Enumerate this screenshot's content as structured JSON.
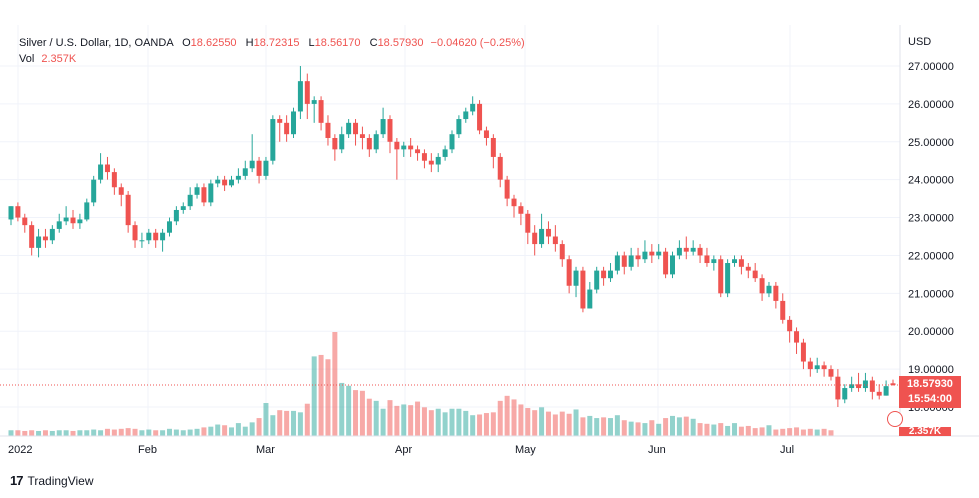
{
  "legend": {
    "symbol": "Silver / U.S. Dollar, 1D, OANDA",
    "open_label": "O",
    "open": "18.62550",
    "high_label": "H",
    "high": "18.72315",
    "low_label": "L",
    "low": "18.56170",
    "close_label": "C",
    "close": "18.57930",
    "change": "−0.04620 (−0.25%)",
    "vol_label": "Vol",
    "vol": "2.357K"
  },
  "currency": "USD",
  "last_price": "18.57930",
  "countdown": "15:54:00",
  "vol_tag": "2.357K",
  "brand": "TradingView",
  "colors": {
    "up": "#26a69a",
    "down": "#ef5350",
    "grid": "#f0f3fa",
    "axis_text": "#131722"
  },
  "chart_data": {
    "type": "candlestick",
    "y_ticks": [
      "27.00000",
      "26.00000",
      "25.00000",
      "24.00000",
      "23.00000",
      "22.00000",
      "21.00000",
      "20.00000",
      "19.00000",
      "18.00000"
    ],
    "ylim": [
      17.5,
      27.9
    ],
    "x_ticks": [
      "2022",
      "Feb",
      "Mar",
      "Apr",
      "May",
      "Jun",
      "Jul"
    ],
    "current_price": 18.5793,
    "candles": [
      [
        22.95,
        23.3,
        23.3,
        22.8
      ],
      [
        23.3,
        23.0,
        23.4,
        22.9
      ],
      [
        23.0,
        22.8,
        23.1,
        22.6
      ],
      [
        22.8,
        22.2,
        22.9,
        22.0
      ],
      [
        22.2,
        22.5,
        22.7,
        21.95
      ],
      [
        22.5,
        22.4,
        22.7,
        22.2
      ],
      [
        22.4,
        22.7,
        22.8,
        22.3
      ],
      [
        22.7,
        22.9,
        23.1,
        22.6
      ],
      [
        22.9,
        23.0,
        23.3,
        22.8
      ],
      [
        23.0,
        22.85,
        23.2,
        22.7
      ],
      [
        22.85,
        22.95,
        23.1,
        22.7
      ],
      [
        22.95,
        23.4,
        23.5,
        22.9
      ],
      [
        23.4,
        24.0,
        24.1,
        23.3
      ],
      [
        24.0,
        24.4,
        24.7,
        23.9
      ],
      [
        24.4,
        24.2,
        24.6,
        24.0
      ],
      [
        24.2,
        23.8,
        24.3,
        23.6
      ],
      [
        23.8,
        23.6,
        23.9,
        23.3
      ],
      [
        23.6,
        22.8,
        23.7,
        22.6
      ],
      [
        22.8,
        22.4,
        22.9,
        22.2
      ],
      [
        22.4,
        22.4,
        22.6,
        22.2
      ],
      [
        22.4,
        22.6,
        22.7,
        22.3
      ],
      [
        22.6,
        22.4,
        22.7,
        22.2
      ],
      [
        22.4,
        22.6,
        22.7,
        22.1
      ],
      [
        22.6,
        22.9,
        23.0,
        22.5
      ],
      [
        22.9,
        23.2,
        23.3,
        22.8
      ],
      [
        23.2,
        23.3,
        23.4,
        23.1
      ],
      [
        23.3,
        23.6,
        23.8,
        23.2
      ],
      [
        23.6,
        23.8,
        23.9,
        23.5
      ],
      [
        23.8,
        23.4,
        23.9,
        23.3
      ],
      [
        23.4,
        23.9,
        24.0,
        23.3
      ],
      [
        23.9,
        24.0,
        24.1,
        23.8
      ],
      [
        24.0,
        23.85,
        24.1,
        23.7
      ],
      [
        23.85,
        24.0,
        24.1,
        23.8
      ],
      [
        24.0,
        24.1,
        24.3,
        23.9
      ],
      [
        24.1,
        24.3,
        24.5,
        24.0
      ],
      [
        24.3,
        24.5,
        25.2,
        24.2
      ],
      [
        24.5,
        24.1,
        24.6,
        23.9
      ],
      [
        24.1,
        24.5,
        24.6,
        24.0
      ],
      [
        24.5,
        25.6,
        25.7,
        24.4
      ],
      [
        25.6,
        25.5,
        25.7,
        25.0
      ],
      [
        25.5,
        25.2,
        25.7,
        25.0
      ],
      [
        25.2,
        25.8,
        25.9,
        25.1
      ],
      [
        25.8,
        26.6,
        27.0,
        25.6
      ],
      [
        26.6,
        26.0,
        26.8,
        25.6
      ],
      [
        26.0,
        26.1,
        26.2,
        25.5
      ],
      [
        26.1,
        25.5,
        26.2,
        25.3
      ],
      [
        25.5,
        25.1,
        25.7,
        24.9
      ],
      [
        25.1,
        24.8,
        25.2,
        24.5
      ],
      [
        24.8,
        25.2,
        25.4,
        24.7
      ],
      [
        25.2,
        25.5,
        25.6,
        25.1
      ],
      [
        25.5,
        25.2,
        25.6,
        24.9
      ],
      [
        25.2,
        25.1,
        25.4,
        24.8
      ],
      [
        25.1,
        24.8,
        25.2,
        24.6
      ],
      [
        24.8,
        25.2,
        25.3,
        24.7
      ],
      [
        25.2,
        25.6,
        25.9,
        25.1
      ],
      [
        25.6,
        25.0,
        25.7,
        24.7
      ],
      [
        25.0,
        24.8,
        25.1,
        24.0
      ],
      [
        24.8,
        24.9,
        25.0,
        24.6
      ],
      [
        24.9,
        24.8,
        25.1,
        24.6
      ],
      [
        24.8,
        24.7,
        24.9,
        24.5
      ],
      [
        24.7,
        24.5,
        24.8,
        24.3
      ],
      [
        24.5,
        24.4,
        24.7,
        24.2
      ],
      [
        24.4,
        24.6,
        24.7,
        24.2
      ],
      [
        24.6,
        24.8,
        24.9,
        24.5
      ],
      [
        24.8,
        25.2,
        25.3,
        24.7
      ],
      [
        25.2,
        25.6,
        25.7,
        25.1
      ],
      [
        25.6,
        25.8,
        25.9,
        25.5
      ],
      [
        25.8,
        26.0,
        26.2,
        25.7
      ],
      [
        26.0,
        25.3,
        26.1,
        25.2
      ],
      [
        25.3,
        25.1,
        25.4,
        24.9
      ],
      [
        25.1,
        24.6,
        25.2,
        24.3
      ],
      [
        24.6,
        24.0,
        24.7,
        23.8
      ],
      [
        24.0,
        23.5,
        24.1,
        23.3
      ],
      [
        23.5,
        23.3,
        23.6,
        23.0
      ],
      [
        23.3,
        23.1,
        23.4,
        22.8
      ],
      [
        23.1,
        22.6,
        23.2,
        22.3
      ],
      [
        22.6,
        22.3,
        22.8,
        22.0
      ],
      [
        22.3,
        22.7,
        23.1,
        22.2
      ],
      [
        22.7,
        22.5,
        22.9,
        22.3
      ],
      [
        22.5,
        22.3,
        22.8,
        22.1
      ],
      [
        22.3,
        21.9,
        22.4,
        21.7
      ],
      [
        21.9,
        21.2,
        22.0,
        21.0
      ],
      [
        21.2,
        21.6,
        21.7,
        20.9
      ],
      [
        21.6,
        20.6,
        21.7,
        20.5
      ],
      [
        20.6,
        21.1,
        21.3,
        20.6
      ],
      [
        21.1,
        21.6,
        21.7,
        21.0
      ],
      [
        21.6,
        21.4,
        21.7,
        21.2
      ],
      [
        21.4,
        21.6,
        21.8,
        21.3
      ],
      [
        21.6,
        22.0,
        22.1,
        21.5
      ],
      [
        22.0,
        21.7,
        22.1,
        21.5
      ],
      [
        21.7,
        22.0,
        22.2,
        21.6
      ],
      [
        22.0,
        21.9,
        22.2,
        21.7
      ],
      [
        21.9,
        22.1,
        22.4,
        21.8
      ],
      [
        22.1,
        22.0,
        22.3,
        21.8
      ],
      [
        22.0,
        22.1,
        22.3,
        21.9
      ],
      [
        22.1,
        21.5,
        22.2,
        21.4
      ],
      [
        21.5,
        22.0,
        22.1,
        21.4
      ],
      [
        22.0,
        22.2,
        22.4,
        21.9
      ],
      [
        22.2,
        22.1,
        22.5,
        21.9
      ],
      [
        22.1,
        22.2,
        22.4,
        22.0
      ],
      [
        22.2,
        22.0,
        22.3,
        21.8
      ],
      [
        22.0,
        21.8,
        22.2,
        21.7
      ],
      [
        21.8,
        21.9,
        22.0,
        21.6
      ],
      [
        21.9,
        21.0,
        22.0,
        20.9
      ],
      [
        21.0,
        21.8,
        21.9,
        20.9
      ],
      [
        21.8,
        21.9,
        22.0,
        21.7
      ],
      [
        21.9,
        21.7,
        22.0,
        21.5
      ],
      [
        21.7,
        21.6,
        21.8,
        21.4
      ],
      [
        21.6,
        21.4,
        21.8,
        21.3
      ],
      [
        21.4,
        21.0,
        21.5,
        20.8
      ],
      [
        21.0,
        21.2,
        21.3,
        20.9
      ],
      [
        21.2,
        20.8,
        21.3,
        20.6
      ],
      [
        20.8,
        20.3,
        21.0,
        20.2
      ],
      [
        20.3,
        20.0,
        20.4,
        19.7
      ],
      [
        20.0,
        19.7,
        20.1,
        19.4
      ],
      [
        19.7,
        19.2,
        19.8,
        19.0
      ],
      [
        19.2,
        19.0,
        19.3,
        18.8
      ],
      [
        19.0,
        19.1,
        19.3,
        18.9
      ],
      [
        19.1,
        19.0,
        19.2,
        18.8
      ],
      [
        19.0,
        18.8,
        19.1,
        18.7
      ],
      [
        18.8,
        18.2,
        19.0,
        18.0
      ],
      [
        18.2,
        18.5,
        18.6,
        18.1
      ],
      [
        18.5,
        18.6,
        18.8,
        18.4
      ],
      [
        18.6,
        18.5,
        18.9,
        18.4
      ],
      [
        18.5,
        18.7,
        18.9,
        18.4
      ],
      [
        18.7,
        18.4,
        18.8,
        18.2
      ],
      [
        18.4,
        18.3,
        18.6,
        18.2
      ],
      [
        18.3,
        18.55,
        18.7,
        18.3
      ],
      [
        18.6255,
        18.5793,
        18.72315,
        18.5617
      ]
    ],
    "volume": [
      0.8,
      0.8,
      0.7,
      0.8,
      0.7,
      0.8,
      0.7,
      0.8,
      0.8,
      0.7,
      0.8,
      0.8,
      0.9,
      0.8,
      1.0,
      0.9,
      1.0,
      1.1,
      1.0,
      0.8,
      0.9,
      0.8,
      0.8,
      1.0,
      0.9,
      0.8,
      0.9,
      1.0,
      1.2,
      1.3,
      1.6,
      1.5,
      1.2,
      1.8,
      1.3,
      1.9,
      2.5,
      4.6,
      2.9,
      3.6,
      3.5,
      3.5,
      3.3,
      4.5,
      11.1,
      11.3,
      10.7,
      14.5,
      7.4,
      7.0,
      6.4,
      6.3,
      5.2,
      4.9,
      3.8,
      5.0,
      4.2,
      4.4,
      4.3,
      4.8,
      4.0,
      3.6,
      3.8,
      3.3,
      3.8,
      3.8,
      3.5,
      2.9,
      3.0,
      3.2,
      3.3,
      4.9,
      5.6,
      5.1,
      4.4,
      3.9,
      3.6,
      4.0,
      3.4,
      3.0,
      3.4,
      3.1,
      3.7,
      2.6,
      2.8,
      2.5,
      2.6,
      2.5,
      2.9,
      2.2,
      2.0,
      1.9,
      1.8,
      2.2,
      1.7,
      2.5,
      2.8,
      2.6,
      2.7,
      2.4,
      1.8,
      1.7,
      1.6,
      1.8,
      1.4,
      1.8,
      1.3,
      1.4,
      1.1,
      1.2,
      1.5,
      0.9,
      1.0,
      1.1,
      1.2,
      0.9,
      1.0,
      0.9,
      1.0,
      0.8
    ]
  }
}
